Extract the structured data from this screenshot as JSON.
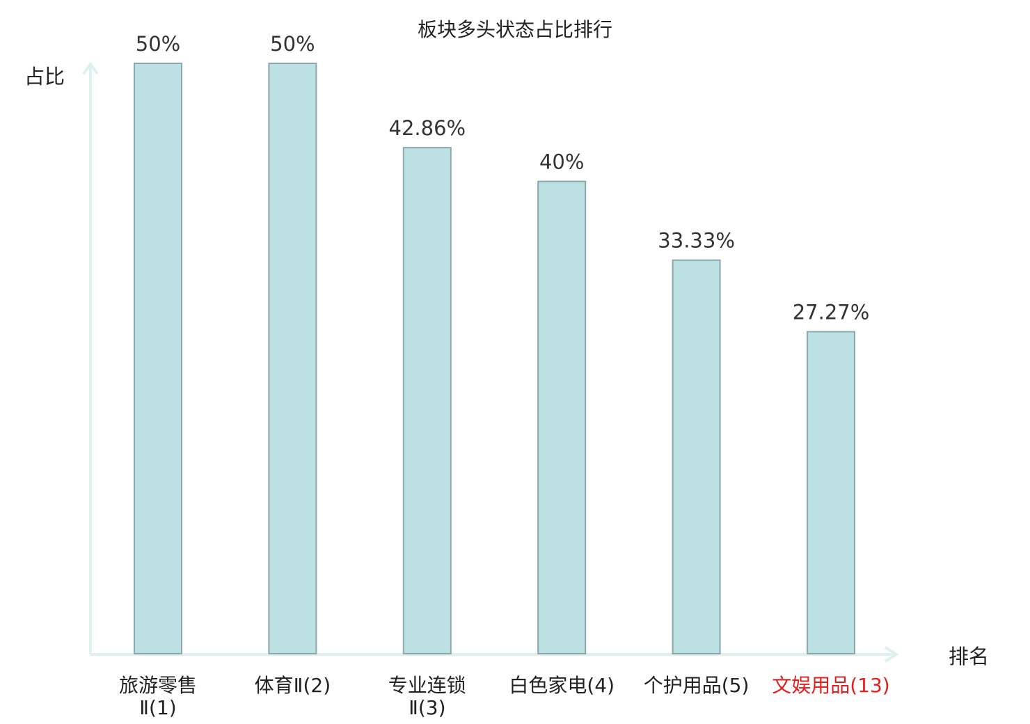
{
  "chart_data": {
    "type": "bar",
    "title": "板块多头状态占比排行",
    "xlabel": "排名",
    "ylabel": "占比",
    "ylim": [
      0,
      50
    ],
    "grid": false,
    "legend": "none",
    "categories": [
      "旅游零售Ⅱ(1)",
      "体育Ⅱ(2)",
      "专业连锁Ⅱ(3)",
      "白色家电(4)",
      "个护用品(5)",
      "文娱用品(13)"
    ],
    "category_lines": [
      [
        "旅游零售",
        "Ⅱ(1)"
      ],
      [
        "体育Ⅱ(2)"
      ],
      [
        "专业连锁",
        "Ⅱ(3)"
      ],
      [
        "白色家电(4)"
      ],
      [
        "个护用品(5)"
      ],
      [
        "文娱用品(13)"
      ]
    ],
    "values": [
      50,
      50,
      42.86,
      40,
      33.33,
      27.27
    ],
    "value_labels": [
      "50%",
      "50%",
      "42.86%",
      "40%",
      "33.33%",
      "27.27%"
    ],
    "highlight_index": 5
  },
  "colors": {
    "bar_fill": "#bde0e2",
    "bar_stroke": "#8aa8ab",
    "axis": "#dff1ee",
    "text": "#222222",
    "value_text": "#333333",
    "highlight": "#e0201c"
  }
}
